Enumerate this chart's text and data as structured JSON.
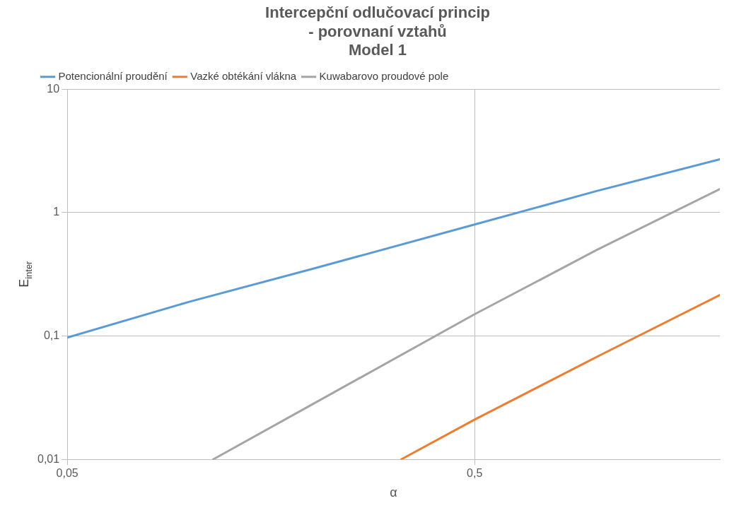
{
  "chart_data": {
    "type": "line",
    "title": [
      "Intercepční odlučovací princip",
      "- porovnaní vztahů",
      "Model 1"
    ],
    "xlabel": "α",
    "ylabel": "E$_{inter}$",
    "log": "xy",
    "grid": true,
    "legend": "top left",
    "marker": "none",
    "line_style": "solid",
    "xlim": [
      0.05,
      2
    ],
    "ylim": [
      0.01,
      10
    ],
    "xticks": [
      {
        "value": 0.05,
        "label": "0,05"
      },
      {
        "value": 0.5,
        "label": "0,5"
      }
    ],
    "yticks": [
      {
        "value": 0.01,
        "label": "0,01"
      },
      {
        "value": 0.1,
        "label": "0,1"
      },
      1,
      10
    ],
    "series": [
      {
        "name": "Potencionální proudění",
        "color": "#5b9bd5",
        "x": [
          0.05,
          0.1,
          0.2,
          0.5,
          1,
          2
        ],
        "values": [
          0.097,
          0.19,
          0.35,
          0.8,
          1.5,
          2.7
        ]
      },
      {
        "name": "Vazké obtékání vlákna",
        "color": "#ed7d31",
        "x": [
          0.33,
          0.5,
          1,
          2
        ],
        "values": [
          0.01,
          0.021,
          0.068,
          0.215
        ]
      },
      {
        "name": "Kuwabarovo proudové pole",
        "color": "#a5a5a5",
        "x": [
          0.114,
          0.2,
          0.5,
          1,
          2
        ],
        "values": [
          0.01,
          0.028,
          0.15,
          0.5,
          1.55
        ]
      }
    ]
  }
}
